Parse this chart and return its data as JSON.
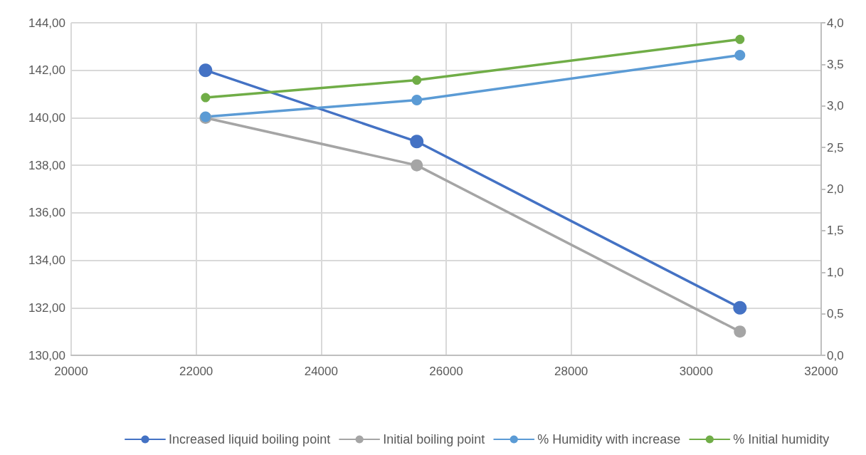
{
  "chart_data": {
    "type": "line",
    "x": [
      22150,
      25530,
      30700
    ],
    "series": [
      {
        "name": "Increased liquid boiling point",
        "color": "#4472c4",
        "values": [
          142,
          139,
          132
        ]
      },
      {
        "name": "Initial boiling point",
        "color": "#a5a5a5",
        "values": [
          140,
          138,
          131
        ]
      },
      {
        "name": "% Humidity with increase",
        "color": "#5b9bd5",
        "values": [
          2.87,
          3.07,
          3.61
        ],
        "axis": "y2"
      },
      {
        "name": "% Initial humidity",
        "color": "#70ad47",
        "values": [
          3.1,
          3.31,
          3.8
        ],
        "axis": "y2"
      }
    ],
    "xlim": [
      20000,
      32000
    ],
    "xticks": [
      20000,
      22000,
      24000,
      26000,
      28000,
      30000,
      32000
    ],
    "ylim": [
      130,
      144
    ],
    "yticks": [
      {
        "value": 130,
        "label": "130,00"
      },
      {
        "value": 132,
        "label": "132,00"
      },
      {
        "value": 134,
        "label": "134,00"
      },
      {
        "value": 136,
        "label": "136,00"
      },
      {
        "value": 138,
        "label": "138,00"
      },
      {
        "value": 140,
        "label": "140,00"
      },
      {
        "value": 142,
        "label": "142,00"
      },
      {
        "value": 144,
        "label": "144,00"
      }
    ],
    "y2lim": [
      0,
      4
    ],
    "y2ticks": [
      {
        "value": 0,
        "label": "0,0"
      },
      {
        "value": 0.5,
        "label": "0,5"
      },
      {
        "value": 1,
        "label": "1,0"
      },
      {
        "value": 1.5,
        "label": "1,5"
      },
      {
        "value": 2,
        "label": "2,0"
      },
      {
        "value": 2.5,
        "label": "2,5"
      },
      {
        "value": 3,
        "label": "3,0"
      },
      {
        "value": 3.5,
        "label": "3,5"
      },
      {
        "value": 4,
        "label": "4,0"
      }
    ],
    "grid": true,
    "legend": "bottom",
    "marker": "circle",
    "line_style": "solid"
  }
}
